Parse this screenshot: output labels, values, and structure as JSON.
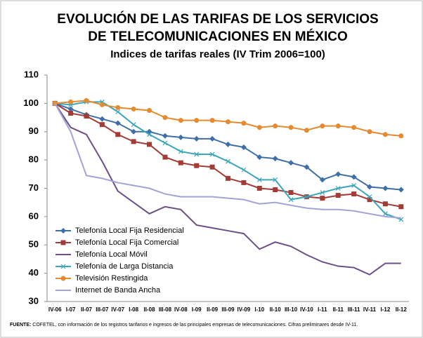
{
  "chart_data": {
    "type": "line",
    "title": [
      "EVOLUCIÓN DE LAS TARIFAS DE LOS SERVICIOS",
      "DE TELECOMUNICACIONES EN MÉXICO"
    ],
    "subtitle": "Indices de tarifas reales (IV Trim 2006=100)",
    "categories": [
      "IV-06",
      "I-07",
      "II-07",
      "III-07",
      "IV-07",
      "I-08",
      "II-08",
      "III-08",
      "IV-08",
      "I-09",
      "II-09",
      "III-09",
      "IV-09",
      "I-10",
      "II-10",
      "III-10",
      "IV-10",
      "I-11",
      "II-11",
      "III-11",
      "IV-11",
      "I-12",
      "II-12"
    ],
    "ylim": [
      30,
      110
    ],
    "yticks": [
      30,
      40,
      50,
      60,
      70,
      80,
      90,
      100,
      110
    ],
    "grid": false,
    "legend": "lower-left",
    "series": [
      {
        "name": "Telefonía Local Fija Residencial",
        "color": "#3f6fa6",
        "marker": "diamond",
        "values": [
          100,
          98,
          96,
          94.5,
          93,
          90,
          90,
          88.5,
          88,
          87.5,
          87.5,
          85.5,
          84.5,
          81,
          80.5,
          79,
          77.5,
          73,
          75,
          74,
          70.5,
          70,
          69.5
        ]
      },
      {
        "name": "Telefonía Local Fija Comercial",
        "color": "#a33b37",
        "marker": "square",
        "values": [
          100,
          96.5,
          95.5,
          92.5,
          89,
          86.5,
          85.5,
          81,
          79,
          78,
          77.5,
          73.5,
          72,
          70,
          69.5,
          68.5,
          67,
          66.5,
          67.5,
          68,
          66,
          64.5,
          63.5
        ]
      },
      {
        "name": "Telefonía Local Móvil",
        "color": "#6b4f86",
        "marker": "none",
        "values": [
          100,
          91.5,
          89,
          79.5,
          69,
          65,
          61,
          63.5,
          62.5,
          57,
          56,
          55,
          54,
          48.5,
          51,
          49.5,
          46.5,
          44,
          42.5,
          42,
          39.5,
          43.5,
          43.5
        ]
      },
      {
        "name": "Telefonía de Larga Distancia",
        "color": "#3aa6b9",
        "marker": "cross",
        "values": [
          100,
          99.5,
          100.5,
          100.5,
          97,
          92.5,
          89,
          86,
          83,
          82,
          82,
          79.5,
          76.5,
          73,
          73,
          66,
          67,
          68.5,
          70,
          71,
          67,
          61,
          59
        ]
      },
      {
        "name": "Televisión Restingida",
        "color": "#e58a2f",
        "marker": "circle",
        "values": [
          100,
          100.5,
          101,
          99.5,
          98.5,
          98,
          97.5,
          95,
          94,
          94,
          94,
          93.5,
          93,
          91.5,
          92,
          91.5,
          90.5,
          92,
          92,
          91.5,
          90,
          89,
          88.5
        ]
      },
      {
        "name": "Internet de Banda Ancha",
        "color": "#a3a4d6",
        "marker": "none",
        "values": [
          100,
          90,
          74.5,
          73.5,
          72,
          71,
          70,
          68,
          67,
          67,
          67,
          66.5,
          66,
          64.5,
          65,
          64,
          63,
          62.5,
          62.5,
          62,
          61,
          60,
          59.5
        ]
      }
    ],
    "source_label": "FUENTE:",
    "source": "COFETEL, con información de los registros tarifarios e ingresos de las principales empresas de telecomunicaciones. Cifras preliminares desde IV-11."
  }
}
